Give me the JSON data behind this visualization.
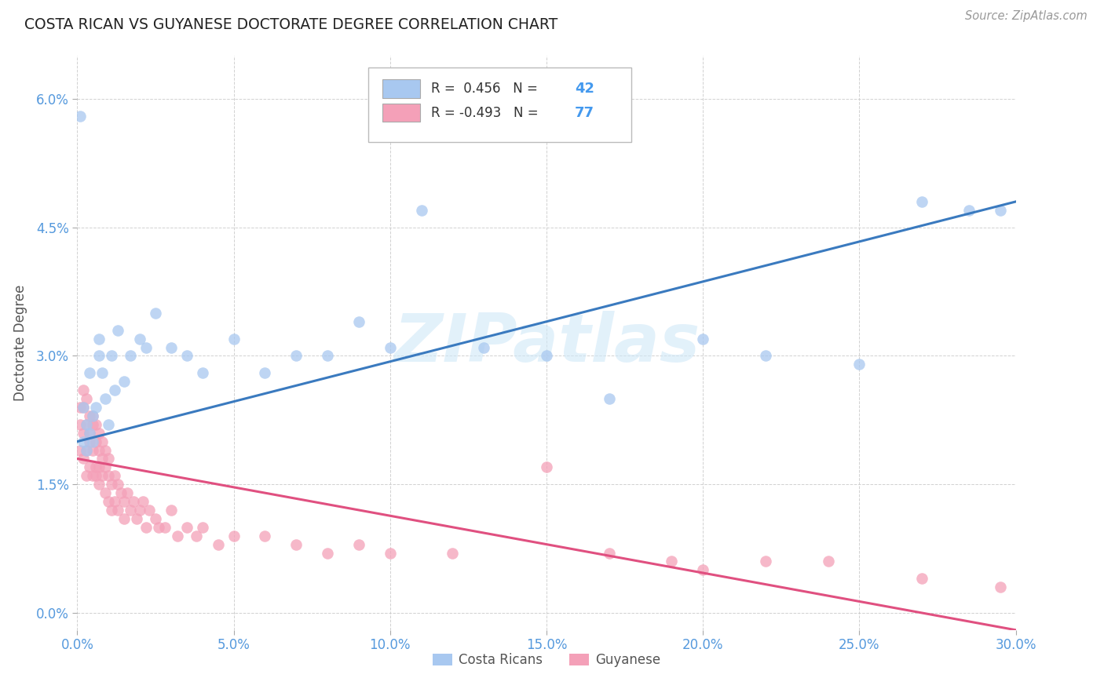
{
  "title": "COSTA RICAN VS GUYANESE DOCTORATE DEGREE CORRELATION CHART",
  "source": "Source: ZipAtlas.com",
  "ylabel": "Doctorate Degree",
  "xlabel_ticks": [
    "0.0%",
    "5.0%",
    "10.0%",
    "15.0%",
    "20.0%",
    "25.0%",
    "30.0%"
  ],
  "ylabel_ticks": [
    "0.0%",
    "1.5%",
    "3.0%",
    "4.5%",
    "6.0%"
  ],
  "xlim": [
    0.0,
    0.3
  ],
  "ylim": [
    -0.002,
    0.065
  ],
  "blue_R": 0.456,
  "blue_N": 42,
  "pink_R": -0.493,
  "pink_N": 77,
  "watermark": "ZIPatlas",
  "legend_labels": [
    "Costa Ricans",
    "Guyanese"
  ],
  "blue_color": "#a8c8f0",
  "pink_color": "#f4a0b8",
  "blue_line_color": "#3a7abf",
  "pink_line_color": "#e05080",
  "background_color": "#ffffff",
  "grid_color": "#cccccc",
  "blue_scatter_x": [
    0.001,
    0.002,
    0.002,
    0.003,
    0.003,
    0.004,
    0.004,
    0.005,
    0.005,
    0.006,
    0.007,
    0.007,
    0.008,
    0.009,
    0.01,
    0.011,
    0.012,
    0.013,
    0.015,
    0.017,
    0.02,
    0.022,
    0.025,
    0.03,
    0.035,
    0.04,
    0.05,
    0.06,
    0.07,
    0.08,
    0.09,
    0.1,
    0.11,
    0.13,
    0.15,
    0.17,
    0.2,
    0.22,
    0.25,
    0.27,
    0.285,
    0.295
  ],
  "blue_scatter_y": [
    0.058,
    0.02,
    0.024,
    0.019,
    0.022,
    0.021,
    0.028,
    0.02,
    0.023,
    0.024,
    0.032,
    0.03,
    0.028,
    0.025,
    0.022,
    0.03,
    0.026,
    0.033,
    0.027,
    0.03,
    0.032,
    0.031,
    0.035,
    0.031,
    0.03,
    0.028,
    0.032,
    0.028,
    0.03,
    0.03,
    0.034,
    0.031,
    0.047,
    0.031,
    0.03,
    0.025,
    0.032,
    0.03,
    0.029,
    0.048,
    0.047,
    0.047
  ],
  "pink_scatter_x": [
    0.001,
    0.001,
    0.001,
    0.002,
    0.002,
    0.002,
    0.002,
    0.003,
    0.003,
    0.003,
    0.003,
    0.004,
    0.004,
    0.004,
    0.004,
    0.005,
    0.005,
    0.005,
    0.005,
    0.006,
    0.006,
    0.006,
    0.006,
    0.007,
    0.007,
    0.007,
    0.007,
    0.008,
    0.008,
    0.008,
    0.009,
    0.009,
    0.009,
    0.01,
    0.01,
    0.01,
    0.011,
    0.011,
    0.012,
    0.012,
    0.013,
    0.013,
    0.014,
    0.015,
    0.015,
    0.016,
    0.017,
    0.018,
    0.019,
    0.02,
    0.021,
    0.022,
    0.023,
    0.025,
    0.026,
    0.028,
    0.03,
    0.032,
    0.035,
    0.038,
    0.04,
    0.045,
    0.05,
    0.06,
    0.07,
    0.08,
    0.09,
    0.1,
    0.12,
    0.15,
    0.17,
    0.19,
    0.2,
    0.22,
    0.24,
    0.27,
    0.295
  ],
  "pink_scatter_y": [
    0.024,
    0.019,
    0.022,
    0.026,
    0.021,
    0.018,
    0.024,
    0.019,
    0.022,
    0.016,
    0.025,
    0.02,
    0.023,
    0.017,
    0.021,
    0.019,
    0.022,
    0.016,
    0.023,
    0.02,
    0.017,
    0.022,
    0.016,
    0.019,
    0.015,
    0.021,
    0.017,
    0.02,
    0.016,
    0.018,
    0.017,
    0.014,
    0.019,
    0.018,
    0.013,
    0.016,
    0.015,
    0.012,
    0.016,
    0.013,
    0.015,
    0.012,
    0.014,
    0.013,
    0.011,
    0.014,
    0.012,
    0.013,
    0.011,
    0.012,
    0.013,
    0.01,
    0.012,
    0.011,
    0.01,
    0.01,
    0.012,
    0.009,
    0.01,
    0.009,
    0.01,
    0.008,
    0.009,
    0.009,
    0.008,
    0.007,
    0.008,
    0.007,
    0.007,
    0.017,
    0.007,
    0.006,
    0.005,
    0.006,
    0.006,
    0.004,
    0.003
  ],
  "blue_line_x0": 0.0,
  "blue_line_y0": 0.02,
  "blue_line_x1": 0.3,
  "blue_line_y1": 0.048,
  "pink_line_x0": 0.0,
  "pink_line_y0": 0.018,
  "pink_line_x1": 0.3,
  "pink_line_y1": -0.002
}
